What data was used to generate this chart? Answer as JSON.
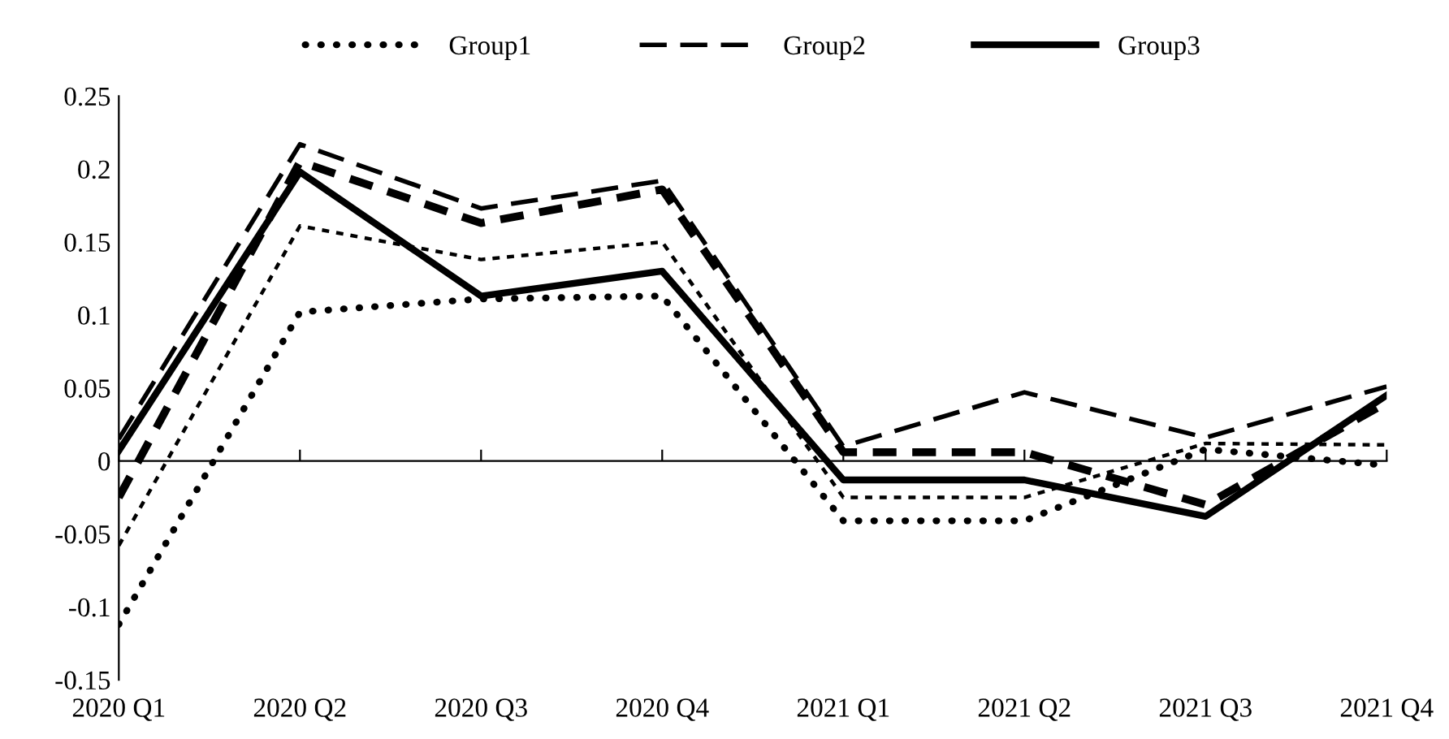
{
  "chart_data": {
    "type": "line",
    "categories": [
      "2020 Q1",
      "2020 Q2",
      "2020 Q3",
      "2020 Q4",
      "2021 Q1",
      "2021 Q2",
      "2021 Q3",
      "2021 Q4"
    ],
    "series": [
      {
        "name": "Group1",
        "color": "#000000",
        "line_style": "dotted",
        "values": [
          -0.112,
          0.102,
          0.111,
          0.113,
          -0.041,
          -0.041,
          0.008,
          -0.003
        ]
      },
      {
        "name": "Group2",
        "color": "#000000",
        "line_style": "dashed",
        "values": [
          0.015,
          0.217,
          0.173,
          0.192,
          0.01,
          0.047,
          0.016,
          0.051
        ]
      },
      {
        "name": "Group3",
        "color": "#000000",
        "line_style": "solid",
        "values": [
          0.007,
          0.198,
          0.113,
          0.13,
          -0.013,
          -0.013,
          -0.038,
          0.045
        ]
      },
      {
        "color": "#000000",
        "line_style": "dashed",
        "values": [
          -0.025,
          0.205,
          0.163,
          0.186,
          0.006,
          0.006,
          -0.03,
          0.04
        ]
      },
      {
        "color": "#000000",
        "line_style": "dashed",
        "values": [
          -0.058,
          0.161,
          0.138,
          0.15,
          -0.025,
          -0.025,
          0.012,
          0.011
        ]
      }
    ],
    "ylim": [
      -0.15,
      0.25
    ],
    "yticks": [
      -0.15,
      -0.1,
      -0.05,
      0,
      0.05,
      0.1,
      0.15,
      0.2,
      0.25
    ],
    "legend": "top"
  }
}
